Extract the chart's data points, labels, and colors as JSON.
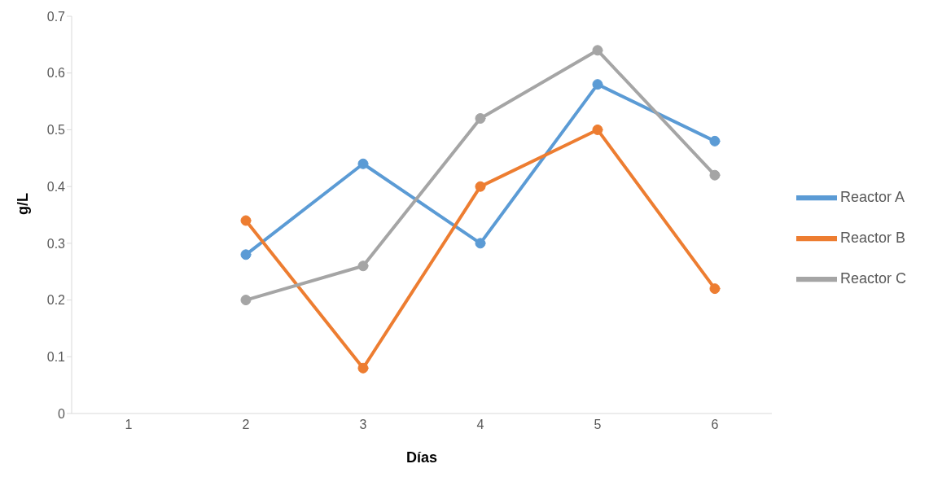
{
  "chart_data": {
    "type": "line",
    "xlabel": "Días",
    "ylabel": "g/L",
    "categories": [
      "1",
      "2",
      "3",
      "4",
      "5",
      "6"
    ],
    "series": [
      {
        "name": "Reactor A",
        "color": "#5b9bd5",
        "values": [
          null,
          0.28,
          0.44,
          0.3,
          0.58,
          0.48
        ]
      },
      {
        "name": "Reactor B",
        "color": "#ed7d31",
        "values": [
          null,
          0.34,
          0.08,
          0.4,
          0.5,
          0.22
        ]
      },
      {
        "name": "Reactor C",
        "color": "#a5a5a5",
        "values": [
          null,
          0.2,
          0.26,
          0.52,
          0.64,
          0.42
        ]
      }
    ],
    "ylim": [
      0,
      0.7
    ],
    "yticks": [
      0,
      0.1,
      0.2,
      0.3,
      0.4,
      0.5,
      0.6,
      0.7
    ],
    "grid": false,
    "legend": "right",
    "marker": "circle",
    "line_style": "solid"
  }
}
